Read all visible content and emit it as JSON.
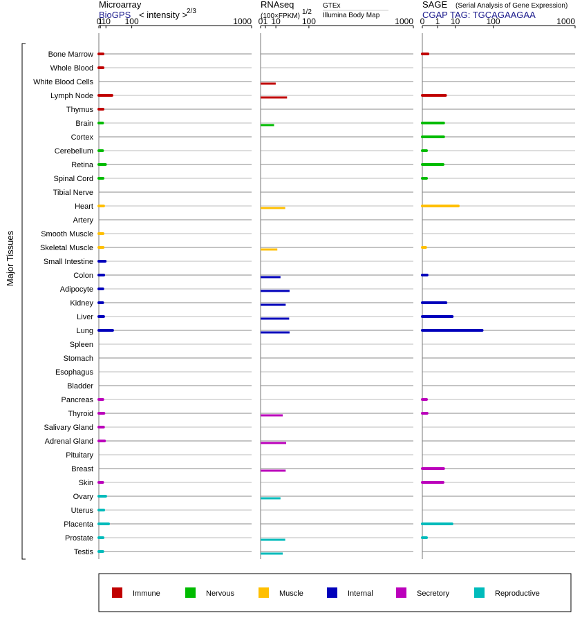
{
  "chart_data": {
    "type": "bar",
    "orientation": "horizontal",
    "axis_label": "Major Tissues",
    "scale": "power",
    "ticks": [
      "0",
      "1",
      "10",
      "100",
      "1000"
    ],
    "categories": [
      "Bone Marrow",
      "Whole Blood",
      "White Blood Cells",
      "Lymph Node",
      "Thymus",
      "Brain",
      "Cortex",
      "Cerebellum",
      "Retina",
      "Spinal Cord",
      "Tibial Nerve",
      "Heart",
      "Artery",
      "Smooth Muscle",
      "Skeletal Muscle",
      "Small Intestine",
      "Colon",
      "Adipocyte",
      "Kidney",
      "Liver",
      "Lung",
      "Spleen",
      "Stomach",
      "Esophagus",
      "Bladder",
      "Pancreas",
      "Thyroid",
      "Salivary Gland",
      "Adrenal Gland",
      "Pituitary",
      "Breast",
      "Skin",
      "Ovary",
      "Uterus",
      "Placenta",
      "Prostate",
      "Testis"
    ],
    "groups": [
      "Immune",
      "Immune",
      "Immune",
      "Immune",
      "Immune",
      "Nervous",
      "Nervous",
      "Nervous",
      "Nervous",
      "Nervous",
      "Nervous",
      "Muscle",
      "Muscle",
      "Muscle",
      "Muscle",
      "Internal",
      "Internal",
      "Internal",
      "Internal",
      "Internal",
      "Internal",
      "Internal",
      "Internal",
      "Internal",
      "Secretory",
      "Secretory",
      "Secretory",
      "Secretory",
      "Secretory",
      "Secretory",
      "Secretory",
      "Secretory",
      "Reproductive",
      "Reproductive",
      "Reproductive",
      "Reproductive",
      "Reproductive"
    ],
    "group_colors": {
      "Immune": "#c00000",
      "Nervous": "#00bb00",
      "Muscle": "#ffbf00",
      "Internal": "#0000bb",
      "Secretory": "#bb00bb",
      "Reproductive": "#00bbbb"
    },
    "panels": [
      {
        "name": "Microarray",
        "source": "BioGPS",
        "unit": "< intensity >",
        "exponent": "2/3",
        "values": [
          4.5,
          4.5,
          null,
          25,
          4.5,
          3.8,
          null,
          3.8,
          9,
          4.5,
          null,
          5.5,
          null,
          4.5,
          4.7,
          8.5,
          5.7,
          4.2,
          4.0,
          5.5,
          27,
          null,
          null,
          null,
          null,
          4.2,
          6.0,
          5.3,
          7.1,
          null,
          null,
          4.0,
          9.5,
          5.7,
          16,
          4.5,
          4.2
        ]
      },
      {
        "name": "RNAseq",
        "unit": "(100×FPKM)",
        "exponent": "1/2",
        "source_top": "GTEx",
        "source_bottom": "Illumina Body Map",
        "gtex_values": [
          null,
          null,
          null,
          null,
          null,
          null,
          null,
          null,
          null,
          null,
          null,
          null,
          null,
          null,
          null,
          null,
          null,
          null,
          null,
          null,
          null,
          null,
          null,
          null,
          null,
          null,
          null,
          null,
          null,
          null,
          null,
          null,
          null,
          null,
          null,
          null,
          null
        ],
        "bodymap_values": [
          null,
          null,
          9.8,
          30,
          null,
          7.8,
          null,
          null,
          null,
          null,
          null,
          26,
          null,
          null,
          12,
          null,
          17,
          36,
          27,
          35,
          36,
          null,
          null,
          null,
          null,
          null,
          21,
          null,
          28,
          null,
          27,
          null,
          17,
          null,
          null,
          26,
          21
        ]
      },
      {
        "name": "SAGE",
        "subtitle": "(Serial Analysis of Gene Expression)",
        "tag": "CGAP TAG: TGCAGAAGAA",
        "values": [
          0.05,
          null,
          null,
          3.5,
          null,
          2.7,
          2.7,
          0.02,
          2.5,
          0.02,
          null,
          13,
          null,
          null,
          0.01,
          null,
          0.03,
          null,
          3.7,
          7.5,
          60,
          null,
          null,
          null,
          null,
          0.02,
          0.03,
          null,
          null,
          null,
          2.7,
          2.5,
          null,
          null,
          7.3,
          0.02,
          null
        ]
      }
    ],
    "legend": [
      "Immune",
      "Nervous",
      "Muscle",
      "Internal",
      "Secretory",
      "Reproductive"
    ],
    "legend_position": "bottom"
  }
}
